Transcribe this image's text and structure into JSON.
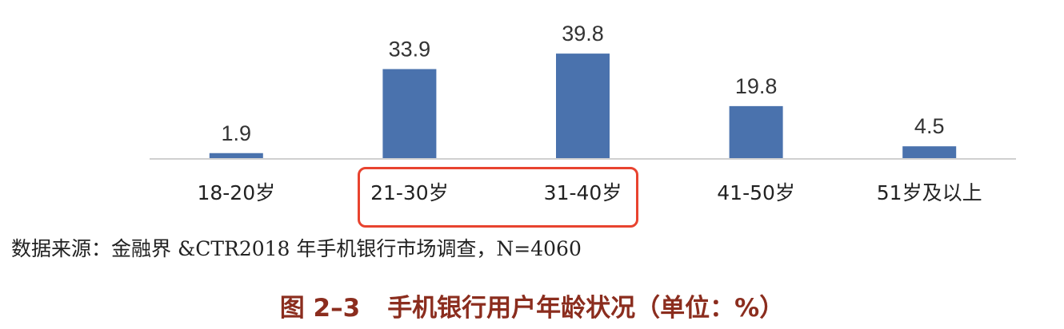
{
  "chart_data": {
    "type": "bar",
    "categories": [
      "18-20岁",
      "21-30岁",
      "31-40岁",
      "41-50岁",
      "51岁及以上"
    ],
    "values": [
      1.9,
      33.9,
      39.8,
      19.8,
      4.5
    ],
    "data_labels": [
      "1.9",
      "33.9",
      "39.8",
      "19.8",
      "4.5"
    ],
    "ylim": [
      0,
      45
    ],
    "grid": false,
    "legend": "none",
    "bar_color": "#4a72ad",
    "highlighted_categories": [
      "21-30岁",
      "31-40岁"
    ],
    "highlight_color": "#e8432f"
  },
  "source_note": "数据来源：金融界 &CTR2018 年手机银行市场调查，N=4060",
  "figure": {
    "number": "图 2–3",
    "title": "手机银行用户年龄状况（单位：%）",
    "title_color": "#8b2d1e"
  }
}
